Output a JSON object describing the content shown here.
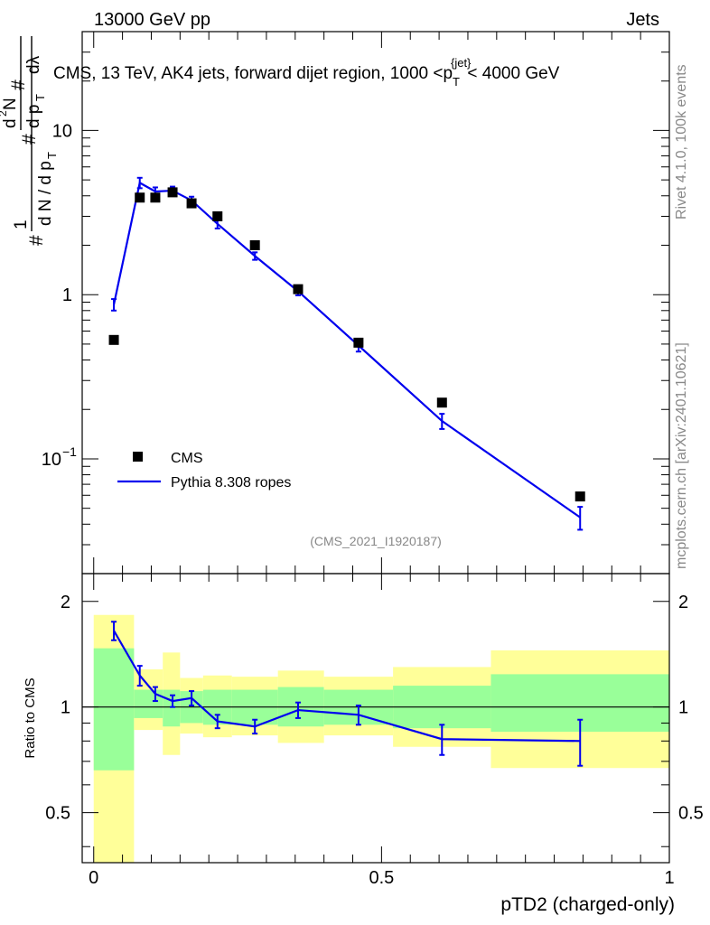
{
  "header": {
    "energy": "13000 GeV pp",
    "category": "Jets"
  },
  "side": {
    "rivet": "Rivet 4.1.0,  100k events",
    "source": "mcplots.cern.ch [arXiv:2401.10621]"
  },
  "colors": {
    "data": "#000000",
    "mc": "#0000ee",
    "band_inner": "#99ff99",
    "band_outer": "#ffff99"
  },
  "chart_data": [
    {
      "type": "line",
      "panel": "main",
      "title": "CMS, 13 TeV, AK4 jets, forward dijet region, 1000 < p_T^{jet} < 4000 GeV",
      "title_parts": {
        "pre": "CMS, 13 TeV, AK4 jets, forward dijet region, 1000 <p",
        "sub": "T",
        "sup": "{jet}",
        "post": "< 4000 GeV"
      },
      "ylabel": "1/(dN/dp_T) d²N/(dp_T dλ)",
      "yscale": "log",
      "ylim": [
        0.02,
        40
      ],
      "xlim": [
        -0.02,
        1.0
      ],
      "y_ticks": [
        {
          "value": 10,
          "label": "10"
        },
        {
          "value": 1,
          "label": "1"
        },
        {
          "value": 0.1,
          "label": "10",
          "exp": "−1"
        }
      ],
      "watermark": "(CMS_2021_I1920187)",
      "legend": [
        {
          "label": "CMS",
          "style": "marker"
        },
        {
          "label": "Pythia 8.308 ropes",
          "style": "line"
        }
      ],
      "series": [
        {
          "name": "CMS",
          "style": "marker",
          "x": [
            0.035,
            0.08,
            0.107,
            0.137,
            0.17,
            0.215,
            0.28,
            0.355,
            0.46,
            0.605,
            0.845
          ],
          "y": [
            0.53,
            3.9,
            3.9,
            4.2,
            3.6,
            3.0,
            2.0,
            1.08,
            0.51,
            0.22,
            0.059
          ]
        },
        {
          "name": "Pythia 8.308 ropes",
          "style": "line",
          "x": [
            0.035,
            0.08,
            0.107,
            0.137,
            0.17,
            0.215,
            0.28,
            0.355,
            0.46,
            0.605,
            0.845
          ],
          "y": [
            0.87,
            4.8,
            4.25,
            4.3,
            3.75,
            2.7,
            1.72,
            1.05,
            0.49,
            0.17,
            0.044
          ],
          "err": [
            0.07,
            0.35,
            0.25,
            0.25,
            0.2,
            0.17,
            0.09,
            0.06,
            0.04,
            0.018,
            0.007
          ]
        }
      ]
    },
    {
      "type": "line",
      "panel": "ratio",
      "ylabel": "Ratio to CMS",
      "xlabel": "pTD2 (charged-only)",
      "xlim": [
        -0.02,
        1.0
      ],
      "ylim": [
        0.36,
        2.4
      ],
      "yscale": "log",
      "y_ticks": [
        {
          "value": 2,
          "label": "2"
        },
        {
          "value": 1,
          "label": "1"
        },
        {
          "value": 0.5,
          "label": "0.5"
        }
      ],
      "x_ticks": [
        {
          "value": 0,
          "label": "0"
        },
        {
          "value": 0.5,
          "label": "0.5"
        },
        {
          "value": 1,
          "label": "1"
        }
      ],
      "bands": [
        {
          "x0": 0.0,
          "x1": 0.07,
          "outer": [
            0.36,
            1.83
          ],
          "inner": [
            0.66,
            1.47
          ]
        },
        {
          "x0": 0.07,
          "x1": 0.12,
          "outer": [
            0.86,
            1.28
          ],
          "inner": [
            0.93,
            1.12
          ]
        },
        {
          "x0": 0.12,
          "x1": 0.15,
          "outer": [
            0.73,
            1.43
          ],
          "inner": [
            0.88,
            1.12
          ]
        },
        {
          "x0": 0.15,
          "x1": 0.19,
          "outer": [
            0.84,
            1.21
          ],
          "inner": [
            0.9,
            1.11
          ]
        },
        {
          "x0": 0.19,
          "x1": 0.24,
          "outer": [
            0.82,
            1.23
          ],
          "inner": [
            0.89,
            1.12
          ]
        },
        {
          "x0": 0.24,
          "x1": 0.32,
          "outer": [
            0.83,
            1.22
          ],
          "inner": [
            0.89,
            1.12
          ]
        },
        {
          "x0": 0.32,
          "x1": 0.4,
          "outer": [
            0.79,
            1.27
          ],
          "inner": [
            0.88,
            1.14
          ]
        },
        {
          "x0": 0.4,
          "x1": 0.52,
          "outer": [
            0.83,
            1.22
          ],
          "inner": [
            0.89,
            1.12
          ]
        },
        {
          "x0": 0.52,
          "x1": 0.69,
          "outer": [
            0.77,
            1.3
          ],
          "inner": [
            0.87,
            1.15
          ]
        },
        {
          "x0": 0.69,
          "x1": 1.0,
          "outer": [
            0.67,
            1.45
          ],
          "inner": [
            0.85,
            1.24
          ]
        }
      ],
      "series": [
        {
          "name": "Pythia 8.308 ropes / CMS",
          "x": [
            0.035,
            0.08,
            0.107,
            0.137,
            0.17,
            0.215,
            0.28,
            0.355,
            0.46,
            0.605,
            0.845
          ],
          "y": [
            1.65,
            1.23,
            1.09,
            1.04,
            1.06,
            0.91,
            0.88,
            0.98,
            0.95,
            0.81,
            0.8
          ],
          "err": [
            0.1,
            0.08,
            0.05,
            0.04,
            0.05,
            0.04,
            0.04,
            0.05,
            0.06,
            0.08,
            0.12
          ]
        }
      ]
    }
  ]
}
